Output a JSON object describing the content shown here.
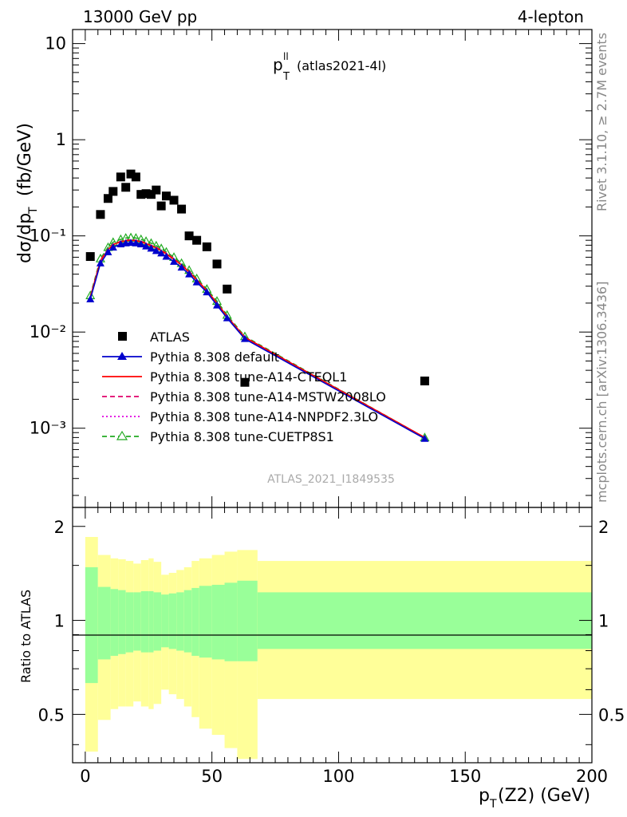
{
  "header": {
    "energy": "13000 GeV pp",
    "process": "4-lepton"
  },
  "plot_title": {
    "main": "p",
    "sup": "ll",
    "sub": "T",
    "tag": "(atlas2021-4l)"
  },
  "side_labels": {
    "rivet": "Rivet 3.1.10, ≥ 2.7M events",
    "source": "mcplots.cern.ch [arXiv:1306.3436]"
  },
  "watermark": "ATLAS_2021_I1849535",
  "axes": {
    "ylabel_top": "dσ/dp_T (fb/GeV)",
    "ylabel_ratio": "Ratio to ATLAS",
    "xlabel": "p_T(Z2) (GeV)",
    "x_ticks": [
      "0",
      "50",
      "100",
      "150",
      "200"
    ],
    "y_ticks_top": [
      "10⁻³",
      "10⁻²",
      "10⁻¹",
      "1",
      "10"
    ],
    "y_ticks_ratio": [
      "0.5",
      "1",
      "2"
    ]
  },
  "legend": [
    {
      "label": "ATLAS",
      "color": "#000000",
      "style": "square-marker"
    },
    {
      "label": "Pythia 8.308 default",
      "color": "#0000cc",
      "style": "line-triangle"
    },
    {
      "label": "Pythia 8.308 tune-A14-CTEQL1",
      "color": "#ff0000",
      "style": "solid"
    },
    {
      "label": "Pythia 8.308 tune-A14-MSTW2008LO",
      "color": "#e0006a",
      "style": "dashed"
    },
    {
      "label": "Pythia 8.308 tune-A14-NNPDF2.3LO",
      "color": "#e000e0",
      "style": "dotted"
    },
    {
      "label": "Pythia 8.308 tune-CUETP8S1",
      "color": "#22aa22",
      "style": "dashed-open-triangle"
    }
  ],
  "chart_data": {
    "type": "scatter",
    "title": "p_T^ll (atlas2021-4l)",
    "xlabel": "p_T(Z2) (GeV)",
    "ylabel": "dσ/dp_T (fb/GeV)",
    "xlim": [
      -5,
      200
    ],
    "ylim": [
      0.00015,
      14
    ],
    "yscale": "log",
    "ratio_ylim": [
      0.35,
      2.3
    ],
    "ratio_yscale": "log",
    "grid": false,
    "legend_position": "bottom-left",
    "data": {
      "name": "ATLAS",
      "x": [
        2,
        6,
        9,
        11,
        14,
        16,
        18,
        20,
        22,
        24,
        26,
        28,
        30,
        32,
        35,
        38,
        41,
        44,
        48,
        52,
        56,
        63,
        134
      ],
      "y": [
        0.061,
        0.167,
        0.245,
        0.29,
        0.41,
        0.32,
        0.44,
        0.41,
        0.27,
        0.275,
        0.27,
        0.3,
        0.205,
        0.26,
        0.235,
        0.19,
        0.1,
        0.09,
        0.077,
        0.051,
        0.028,
        0.003,
        0.0031
      ]
    },
    "mc_x": [
      2,
      6,
      9,
      11,
      14,
      16,
      18,
      20,
      22,
      24,
      26,
      28,
      30,
      32,
      35,
      38,
      41,
      44,
      48,
      52,
      56,
      63,
      134
    ],
    "series": [
      {
        "name": "Pythia 8.308 default",
        "values": [
          0.022,
          0.052,
          0.068,
          0.076,
          0.082,
          0.084,
          0.085,
          0.084,
          0.082,
          0.078,
          0.074,
          0.07,
          0.066,
          0.061,
          0.054,
          0.047,
          0.04,
          0.033,
          0.026,
          0.019,
          0.014,
          0.0085,
          0.00078
        ]
      },
      {
        "name": "Pythia 8.308 tune-A14-CTEQL1",
        "values": [
          0.023,
          0.055,
          0.072,
          0.081,
          0.087,
          0.089,
          0.09,
          0.089,
          0.087,
          0.083,
          0.079,
          0.075,
          0.07,
          0.065,
          0.057,
          0.05,
          0.042,
          0.035,
          0.027,
          0.02,
          0.0145,
          0.0088,
          0.0008
        ]
      },
      {
        "name": "Pythia 8.308 tune-A14-MSTW2008LO",
        "values": [
          0.023,
          0.056,
          0.073,
          0.082,
          0.088,
          0.09,
          0.091,
          0.09,
          0.088,
          0.084,
          0.08,
          0.076,
          0.071,
          0.066,
          0.058,
          0.05,
          0.043,
          0.035,
          0.027,
          0.02,
          0.0145,
          0.0088,
          0.0008
        ]
      },
      {
        "name": "Pythia 8.308 tune-A14-NNPDF2.3LO",
        "values": [
          0.023,
          0.055,
          0.072,
          0.081,
          0.087,
          0.089,
          0.09,
          0.089,
          0.087,
          0.083,
          0.079,
          0.075,
          0.07,
          0.065,
          0.057,
          0.05,
          0.042,
          0.035,
          0.027,
          0.02,
          0.0145,
          0.0088,
          0.0008
        ]
      },
      {
        "name": "Pythia 8.308 tune-CUETP8S1",
        "values": [
          0.024,
          0.058,
          0.076,
          0.086,
          0.092,
          0.095,
          0.096,
          0.095,
          0.092,
          0.088,
          0.084,
          0.079,
          0.074,
          0.068,
          0.06,
          0.052,
          0.044,
          0.036,
          0.028,
          0.021,
          0.015,
          0.009,
          0.0008
        ]
      }
    ],
    "ratio_bands": {
      "x_edges": [
        0,
        5,
        10,
        13,
        16,
        19,
        22,
        25,
        27,
        30,
        33,
        36,
        39,
        42,
        45,
        50,
        55,
        60,
        68,
        200
      ],
      "inner_lo": [
        0.63,
        0.75,
        0.77,
        0.78,
        0.79,
        0.8,
        0.79,
        0.79,
        0.8,
        0.82,
        0.81,
        0.8,
        0.79,
        0.77,
        0.76,
        0.75,
        0.74,
        0.74,
        0.81
      ],
      "inner_hi": [
        1.48,
        1.28,
        1.26,
        1.25,
        1.23,
        1.23,
        1.24,
        1.24,
        1.23,
        1.21,
        1.22,
        1.23,
        1.25,
        1.27,
        1.29,
        1.3,
        1.32,
        1.34,
        1.23
      ],
      "outer_lo": [
        0.38,
        0.48,
        0.52,
        0.53,
        0.53,
        0.55,
        0.53,
        0.52,
        0.54,
        0.6,
        0.58,
        0.56,
        0.53,
        0.49,
        0.45,
        0.43,
        0.39,
        0.36,
        0.56
      ],
      "outer_hi": [
        1.85,
        1.62,
        1.58,
        1.57,
        1.55,
        1.52,
        1.56,
        1.58,
        1.54,
        1.4,
        1.42,
        1.45,
        1.48,
        1.55,
        1.58,
        1.62,
        1.66,
        1.68,
        1.55
      ]
    }
  }
}
